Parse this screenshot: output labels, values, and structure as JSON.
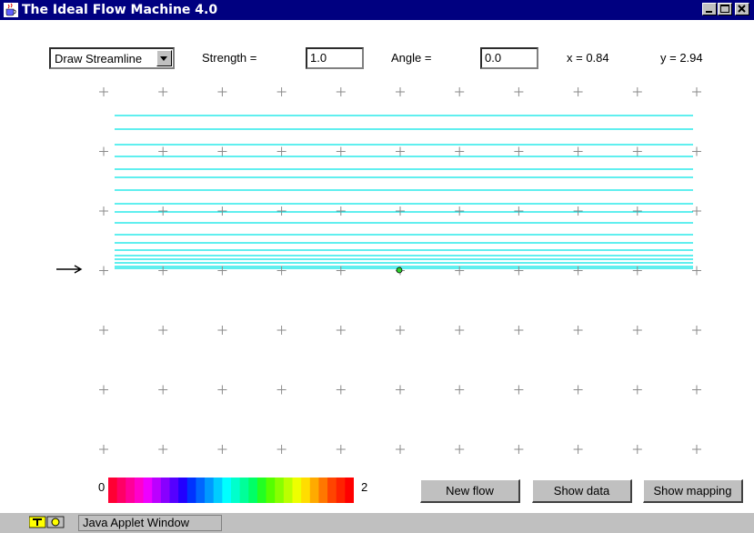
{
  "window": {
    "title": "The Ideal Flow Machine 4.0"
  },
  "controls": {
    "mode_select": {
      "selected": "Draw Streamline"
    },
    "strength_label": "Strength =",
    "strength_value": "1.0",
    "angle_label": "Angle =",
    "angle_value": "0.0",
    "x_readout": "x =  0.84",
    "y_readout": "y =  2.94"
  },
  "canvas": {
    "grid": {
      "columns": 11,
      "rows": 7
    },
    "streamline_color": "#00e5e5",
    "flow_arrow_color": "#000000",
    "probe_point_color": "#2fd12f"
  },
  "color_scale": {
    "min_label": "0",
    "max_label": "2",
    "colors": [
      "#ff0033",
      "#ff0066",
      "#ff0099",
      "#ff00cc",
      "#ee00ff",
      "#bb00ff",
      "#8800ff",
      "#5500ff",
      "#2200ff",
      "#0033ff",
      "#0066ff",
      "#0099ff",
      "#00ccff",
      "#00ffff",
      "#00ffcc",
      "#00ff99",
      "#00ff66",
      "#22ff22",
      "#55ff00",
      "#88ff00",
      "#bbff00",
      "#eeff00",
      "#ffdd00",
      "#ffaa00",
      "#ff7700",
      "#ff4400",
      "#ff2200",
      "#ff0000"
    ]
  },
  "buttons": {
    "new_flow": "New flow",
    "show_data": "Show data",
    "show_mapping": "Show mapping"
  },
  "status": {
    "text": "Java Applet Window"
  }
}
